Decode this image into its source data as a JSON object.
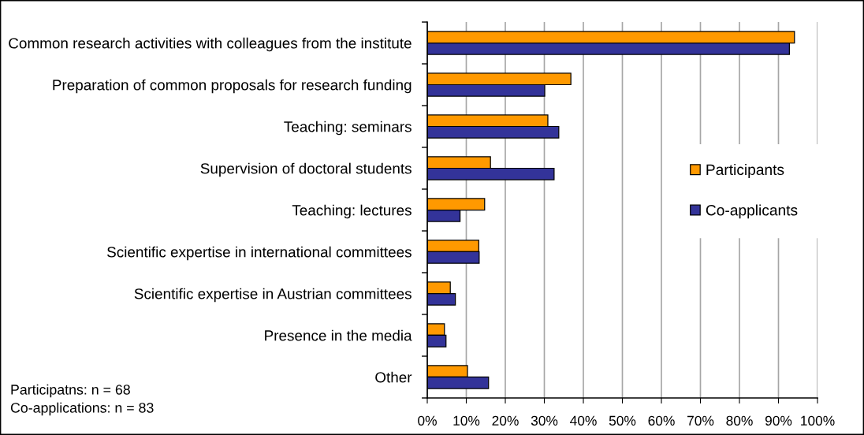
{
  "chart_data": {
    "type": "bar",
    "orientation": "horizontal",
    "categories": [
      "Common research activities with colleagues from the institute",
      "Preparation of common proposals for research funding",
      "Teaching: seminars",
      "Supervision of doctoral students",
      "Teaching: lectures",
      "Scientific expertise in international committees",
      "Scientific expertise in Austrian committees",
      "Presence in the media",
      "Other"
    ],
    "series": [
      {
        "name": "Participants",
        "color": "#ff9900",
        "values": [
          94.1,
          36.8,
          30.9,
          16.2,
          14.7,
          13.2,
          5.9,
          4.4,
          10.3
        ]
      },
      {
        "name": "Co-applicants",
        "color": "#333399",
        "values": [
          92.8,
          30.1,
          33.7,
          32.5,
          8.4,
          13.3,
          7.2,
          4.8,
          15.7
        ]
      }
    ],
    "xlim": [
      0,
      100
    ],
    "xticks": [
      {
        "value": 0,
        "label": "0%"
      },
      {
        "value": 10,
        "label": "10%"
      },
      {
        "value": 20,
        "label": "20%"
      },
      {
        "value": 30,
        "label": "30%"
      },
      {
        "value": 40,
        "label": "40%"
      },
      {
        "value": 50,
        "label": "50%"
      },
      {
        "value": 60,
        "label": "60%"
      },
      {
        "value": 70,
        "label": "70%"
      },
      {
        "value": 80,
        "label": "80%"
      },
      {
        "value": 90,
        "label": "90%"
      },
      {
        "value": 100,
        "label": "100%"
      }
    ],
    "grid": "x",
    "legend": "right",
    "annotations": [
      "Participatns: n = 68",
      "Co-applications: n = 83"
    ]
  }
}
